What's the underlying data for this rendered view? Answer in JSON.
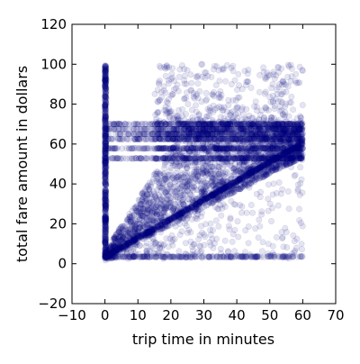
{
  "chart_data": {
    "type": "scatter",
    "title": "",
    "xlabel": "trip time in minutes",
    "ylabel": "total fare amount in dollars",
    "xlim": [
      -10,
      70
    ],
    "ylim": [
      -20,
      120
    ],
    "x_ticks": [
      -10,
      0,
      10,
      20,
      30,
      40,
      50,
      60,
      70
    ],
    "y_ticks": [
      -20,
      0,
      20,
      40,
      60,
      80,
      100,
      120
    ],
    "x_tick_labels": [
      "−10",
      "0",
      "10",
      "20",
      "30",
      "40",
      "50",
      "60",
      "70"
    ],
    "y_tick_labels": [
      "−20",
      "0",
      "20",
      "40",
      "60",
      "80",
      "100",
      "120"
    ],
    "grid": false,
    "legend": "none",
    "marker_color": "#00007f",
    "marker_alpha": 0.04,
    "features": {
      "trip_time_range": [
        0,
        60
      ],
      "fare_range": [
        2.5,
        100
      ],
      "flat_fare_bands": [
        52.8,
        57.8,
        62.5,
        65.0,
        67.5,
        70.0
      ],
      "near_zero_time_column_range": [
        0,
        100
      ],
      "per_minute_slope_lower_bound": 0.85,
      "base_fare": 2.5
    }
  }
}
